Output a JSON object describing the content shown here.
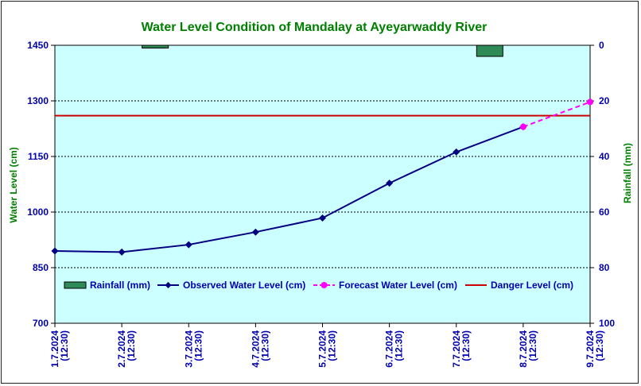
{
  "chart_data": {
    "type": "line",
    "title": "Water Level Condition of Mandalay at Ayeyarwaddy River",
    "ylabel_left": "Water Level (cm)",
    "ylabel_right": "Rainfall (mm)",
    "ylim_left": [
      700,
      1450
    ],
    "yticks_left": [
      700,
      850,
      1000,
      1150,
      1300,
      1450
    ],
    "ylim_right": [
      0,
      100
    ],
    "yticks_right": [
      0,
      20,
      40,
      60,
      80,
      100
    ],
    "right_axis_inverted": true,
    "x_dates": [
      "1.7.2024",
      "2.7.2024",
      "3.7.2024",
      "4.7.2024",
      "5.7.2024",
      "6.7.2024",
      "7.7.2024",
      "8.7.2024",
      "9.7.2024"
    ],
    "x_time": "(12:30)",
    "grid": true,
    "legend_position": "bottom-inside",
    "series": [
      {
        "name": "Rainfall (mm)",
        "kind": "bar",
        "axis": "right",
        "color": "#2e8b57",
        "values": [
          0,
          1,
          0,
          0,
          0,
          0,
          4,
          0,
          0
        ]
      },
      {
        "name": "Observed Water Level (cm)",
        "kind": "line",
        "axis": "left",
        "color": "#000080",
        "marker": "diamond",
        "values": [
          895,
          892,
          912,
          946,
          984,
          1078,
          1162,
          1230,
          null
        ]
      },
      {
        "name": "Forecast Water Level (cm)",
        "kind": "line",
        "axis": "left",
        "color": "#ff00ff",
        "marker": "circle",
        "dashed": true,
        "values": [
          null,
          null,
          null,
          null,
          null,
          null,
          null,
          1230,
          1297
        ]
      },
      {
        "name": "Danger Level (cm)",
        "kind": "hline",
        "axis": "left",
        "color": "#cc0000",
        "value": 1260
      }
    ]
  }
}
